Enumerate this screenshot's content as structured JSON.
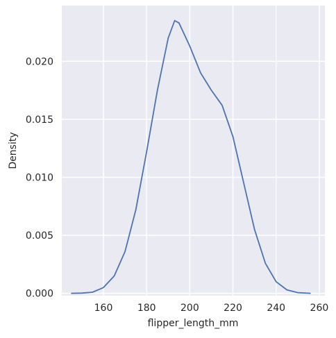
{
  "chart_data": {
    "type": "line",
    "x_label": "flipper_length_mm",
    "y_label": "Density",
    "x": [
      145,
      150,
      155,
      160,
      165,
      170,
      175,
      180,
      185,
      190,
      193,
      195,
      200,
      205,
      210,
      215,
      220,
      225,
      230,
      235,
      240,
      245,
      250,
      256
    ],
    "series": [
      {
        "color": "#4c72b0",
        "values": [
          0,
          2e-05,
          0.0001,
          0.0005,
          0.0015,
          0.0036,
          0.0072,
          0.0122,
          0.0175,
          0.022,
          0.0235,
          0.0233,
          0.0213,
          0.019,
          0.0175,
          0.0162,
          0.0135,
          0.0095,
          0.0055,
          0.0026,
          0.001,
          0.0003,
          6e-05,
          0
        ]
      }
    ],
    "xlim": [
      140.7,
      262.6
    ],
    "ylim": [
      -0.0002,
      0.0248
    ],
    "xticks": [
      160,
      180,
      200,
      220,
      240,
      260
    ],
    "yticks": [
      {
        "value": 0,
        "label": "0.000"
      },
      {
        "value": 0.005,
        "label": "0.005"
      },
      {
        "value": 0.01,
        "label": "0.010"
      },
      {
        "value": 0.015,
        "label": "0.015"
      },
      {
        "value": 0.02,
        "label": "0.020"
      }
    ],
    "grid": true
  }
}
